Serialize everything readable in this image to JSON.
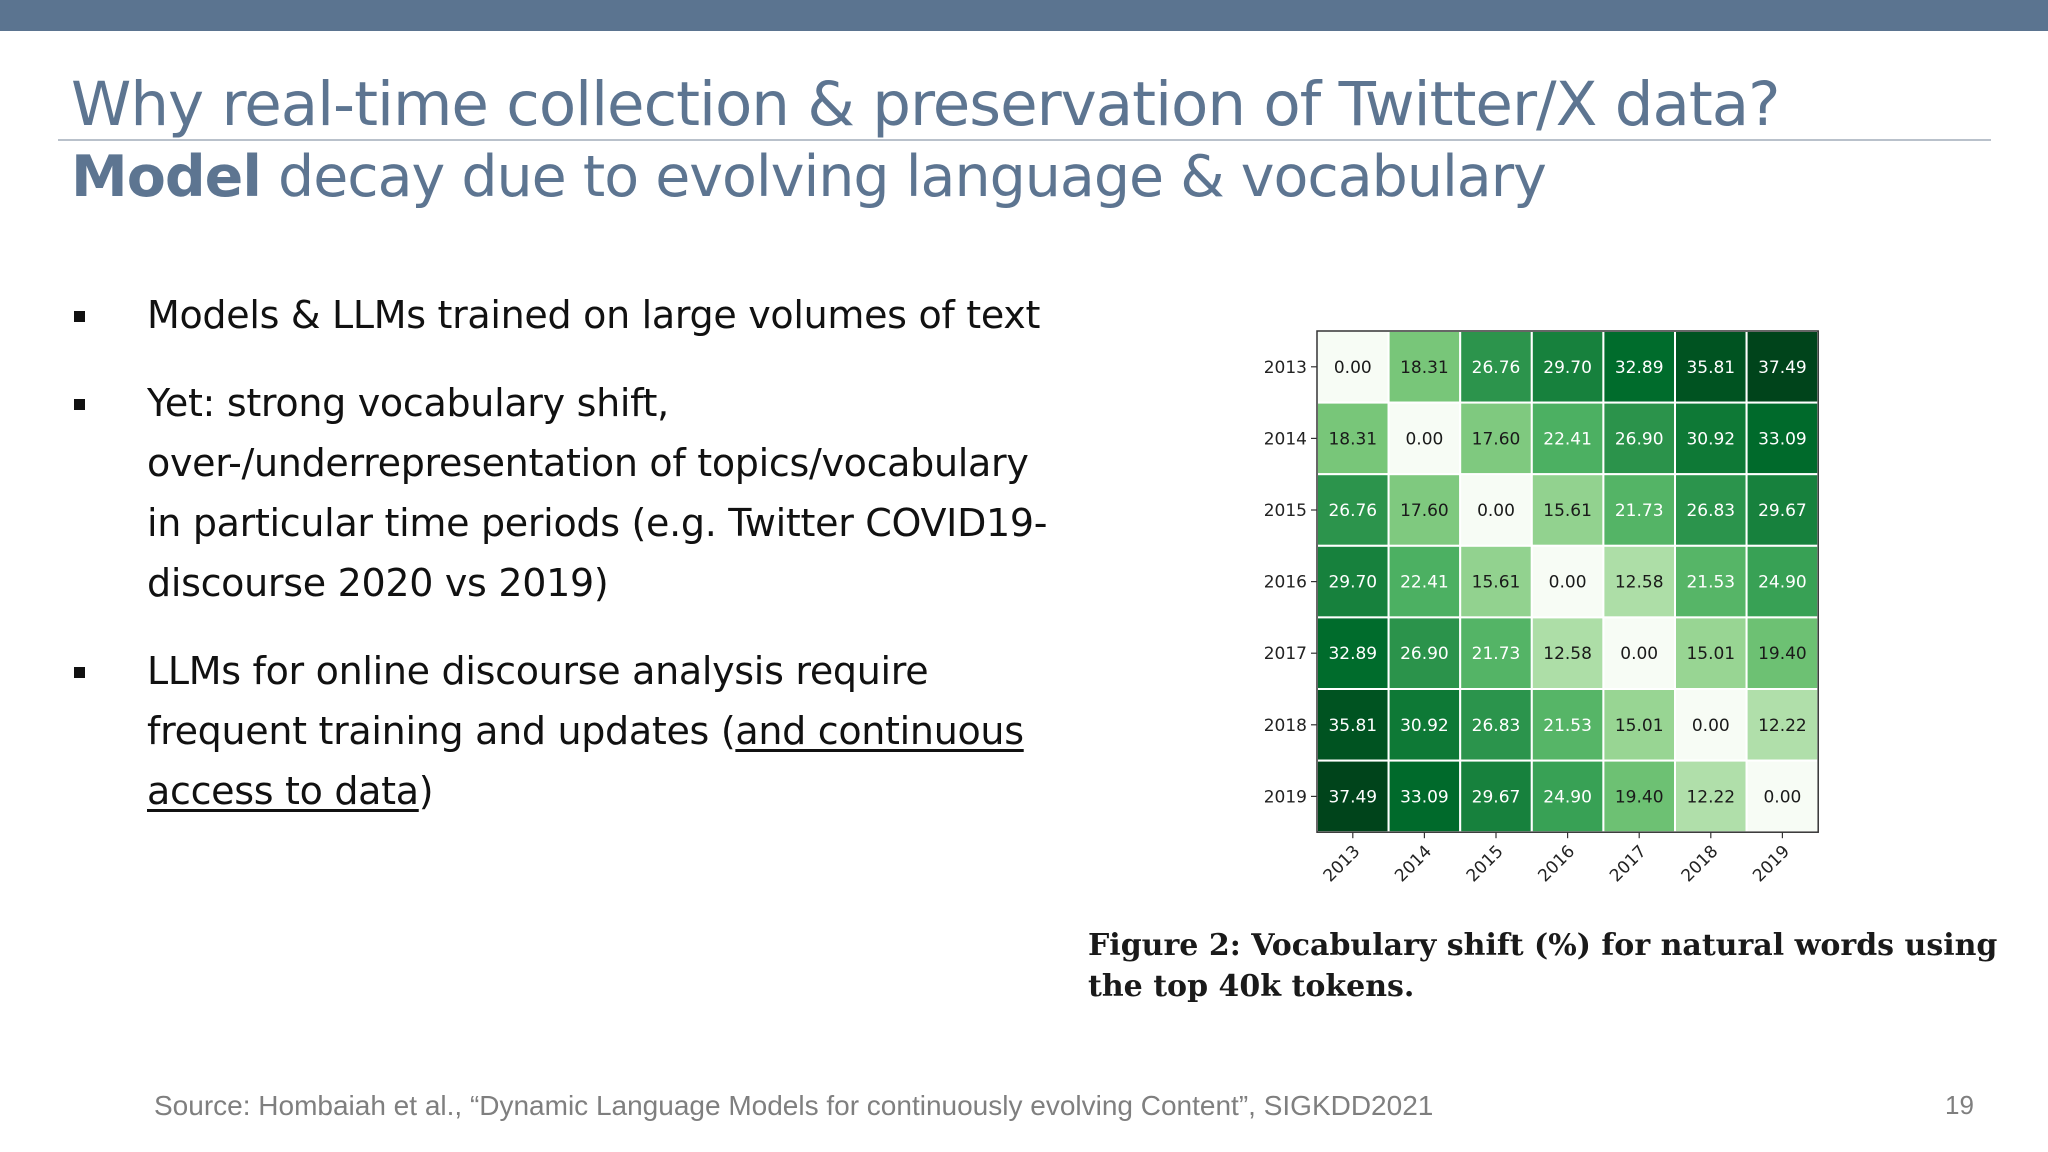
{
  "slide": {
    "title": "Why real-time collection & preservation of Twitter/X data?",
    "subtitle_bold": "Model",
    "subtitle_rest": " decay due to evolving language & vocabulary",
    "bullets": [
      {
        "text": "Models & LLMs trained on large volumes of text"
      },
      {
        "text": "Yet: strong vocabulary shift, over-/underrepresentation of topics/vocabulary in particular time periods (e.g. Twitter COVID19-discourse 2020 vs 2019)"
      },
      {
        "text_before": "LLMs for online discourse analysis require frequent training and updates (",
        "text_underlined": "and continuous access to data",
        "text_after": ")"
      }
    ],
    "figure_caption": "Figure 2: Vocabulary shift (%) for natural words using the top 40k tokens.",
    "source": "Source: Hombaiah et al., “Dynamic Language Models for continuously evolving Content”, SIGKDD2021",
    "page_number": "19",
    "colors": {
      "top_bar": "#5b7490",
      "title": "#5d7591",
      "heat_low": "#f7fcf5",
      "heat_high": "#00441b"
    }
  },
  "chart_data": {
    "type": "heatmap",
    "x_categories": [
      "2013",
      "2014",
      "2015",
      "2016",
      "2017",
      "2018",
      "2019"
    ],
    "y_categories": [
      "2013",
      "2014",
      "2015",
      "2016",
      "2017",
      "2018",
      "2019"
    ],
    "values": [
      [
        0.0,
        18.31,
        26.76,
        29.7,
        32.89,
        35.81,
        37.49
      ],
      [
        18.31,
        0.0,
        17.6,
        22.41,
        26.9,
        30.92,
        33.09
      ],
      [
        26.76,
        17.6,
        0.0,
        15.61,
        21.73,
        26.83,
        29.67
      ],
      [
        29.7,
        22.41,
        15.61,
        0.0,
        12.58,
        21.53,
        24.9
      ],
      [
        32.89,
        26.9,
        21.73,
        12.58,
        0.0,
        15.01,
        19.4
      ],
      [
        35.81,
        30.92,
        26.83,
        21.53,
        15.01,
        0.0,
        12.22
      ],
      [
        37.49,
        33.09,
        29.67,
        24.9,
        19.4,
        12.22,
        0.0
      ]
    ],
    "value_range": [
      0,
      37.49
    ],
    "colormap": "Greens",
    "x_tick_rotation": "45-degree",
    "cell_labels": true
  }
}
